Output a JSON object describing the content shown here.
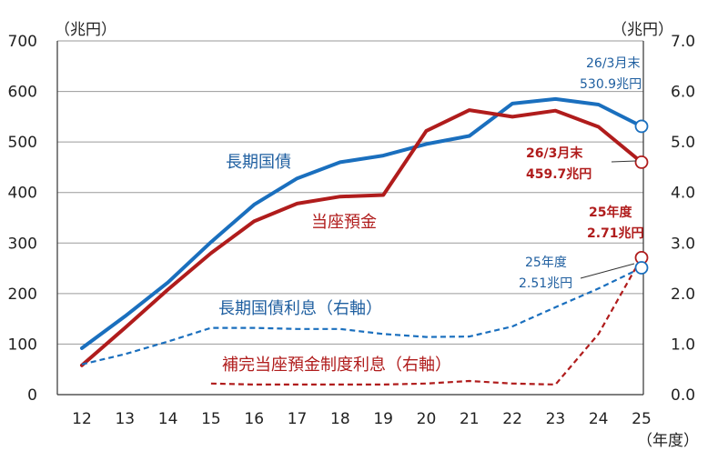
{
  "chart_data": {
    "type": "line",
    "categories": [
      "12",
      "13",
      "14",
      "15",
      "16",
      "17",
      "18",
      "19",
      "20",
      "21",
      "22",
      "23",
      "24",
      "25"
    ],
    "x_unit": "（年度）",
    "left_axis": {
      "unit": "（兆円）",
      "ticks": [
        "0",
        "100",
        "200",
        "300",
        "400",
        "500",
        "600",
        "700"
      ],
      "ylim": [
        0,
        700
      ]
    },
    "right_axis": {
      "unit": "（兆円）",
      "ticks": [
        "0.0",
        "1.0",
        "2.0",
        "3.0",
        "4.0",
        "5.0",
        "6.0",
        "7.0"
      ],
      "ylim": [
        0,
        7
      ]
    },
    "grid": true,
    "series": [
      {
        "name": "長期国債",
        "axis": "left",
        "style": "solid",
        "color": "#1a6fbe",
        "values": [
          92,
          155,
          222,
          302,
          376,
          428,
          460,
          473,
          496,
          512,
          576,
          585,
          574,
          531
        ]
      },
      {
        "name": "当座預金",
        "axis": "left",
        "style": "solid",
        "color": "#b01c1c",
        "values": [
          58,
          132,
          208,
          280,
          343,
          378,
          392,
          395,
          522,
          563,
          550,
          562,
          530,
          460
        ]
      },
      {
        "name": "長期国債利息（右軸）",
        "axis": "right",
        "style": "dashed",
        "color": "#1a6fbe",
        "values": [
          0.6,
          0.8,
          1.05,
          1.32,
          1.32,
          1.3,
          1.3,
          1.2,
          1.14,
          1.15,
          1.35,
          1.73,
          2.1,
          2.51
        ]
      },
      {
        "name": "補完当座預金制度利息（右軸）",
        "axis": "right",
        "style": "dashed",
        "color": "#b01c1c",
        "values": [
          null,
          null,
          null,
          0.22,
          0.2,
          0.2,
          0.2,
          0.2,
          0.22,
          0.27,
          0.22,
          0.2,
          1.2,
          2.71
        ]
      }
    ],
    "annotations": [
      {
        "lines": [
          "26/3月末",
          "530.9兆円"
        ],
        "color": "#1f5fa0",
        "target_series": 0
      },
      {
        "lines": [
          "26/3月末",
          "459.7兆円"
        ],
        "color": "#b01c1c",
        "target_series": 1
      },
      {
        "lines": [
          "25年度",
          "2.71兆円"
        ],
        "color": "#b01c1c",
        "target_series": 3
      },
      {
        "lines": [
          "25年度",
          "2.51兆円"
        ],
        "color": "#1f5fa0",
        "target_series": 2
      }
    ]
  }
}
